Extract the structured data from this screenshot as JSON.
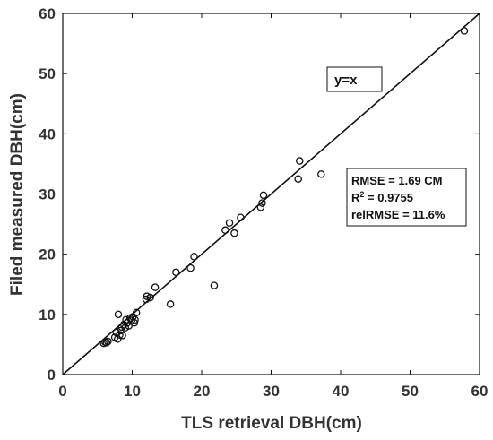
{
  "chart_data": {
    "type": "scatter",
    "xlabel": "TLS retrieval DBH(cm)",
    "ylabel": "Filed measured DBH(cm)",
    "xlim": [
      0,
      60
    ],
    "ylim": [
      0,
      60
    ],
    "xticks": [
      "0",
      "10",
      "20",
      "30",
      "40",
      "50",
      "60"
    ],
    "yticks": [
      "0",
      "10",
      "20",
      "30",
      "40",
      "50",
      "60"
    ],
    "grid": false,
    "reference_line": {
      "label": "y=x",
      "slope": 1,
      "intercept": 0
    },
    "stats": {
      "rmse": "RMSE = 1.69 CM",
      "r2_prefix": "R",
      "r2_sup": "2",
      "r2_value": " = 0.9755",
      "relrmse": "relRMSE = 11.6%"
    },
    "marker_color": "#111111",
    "points": [
      {
        "x": 5.9,
        "y": 5.2
      },
      {
        "x": 6.1,
        "y": 5.4
      },
      {
        "x": 6.3,
        "y": 5.3
      },
      {
        "x": 6.5,
        "y": 5.5
      },
      {
        "x": 7.5,
        "y": 6.2
      },
      {
        "x": 7.7,
        "y": 7.0
      },
      {
        "x": 7.9,
        "y": 5.9
      },
      {
        "x": 8.0,
        "y": 10.0
      },
      {
        "x": 8.2,
        "y": 6.6
      },
      {
        "x": 8.3,
        "y": 7.3
      },
      {
        "x": 8.5,
        "y": 7.9
      },
      {
        "x": 8.6,
        "y": 6.5
      },
      {
        "x": 8.8,
        "y": 8.3
      },
      {
        "x": 9.0,
        "y": 7.8
      },
      {
        "x": 9.1,
        "y": 9.1
      },
      {
        "x": 9.3,
        "y": 8.6
      },
      {
        "x": 9.5,
        "y": 8.1
      },
      {
        "x": 9.7,
        "y": 9.4
      },
      {
        "x": 9.9,
        "y": 9.0
      },
      {
        "x": 10.1,
        "y": 9.6
      },
      {
        "x": 10.3,
        "y": 8.6
      },
      {
        "x": 10.6,
        "y": 10.3
      },
      {
        "x": 10.4,
        "y": 9.1
      },
      {
        "x": 12.0,
        "y": 12.5
      },
      {
        "x": 12.1,
        "y": 13.0
      },
      {
        "x": 12.6,
        "y": 12.8
      },
      {
        "x": 13.3,
        "y": 14.5
      },
      {
        "x": 15.5,
        "y": 11.7
      },
      {
        "x": 16.3,
        "y": 17.0
      },
      {
        "x": 18.4,
        "y": 17.7
      },
      {
        "x": 18.9,
        "y": 19.6
      },
      {
        "x": 21.8,
        "y": 14.8
      },
      {
        "x": 23.4,
        "y": 24.0
      },
      {
        "x": 24.0,
        "y": 25.2
      },
      {
        "x": 24.7,
        "y": 23.5
      },
      {
        "x": 25.6,
        "y": 26.1
      },
      {
        "x": 28.5,
        "y": 27.8
      },
      {
        "x": 28.7,
        "y": 28.5
      },
      {
        "x": 28.9,
        "y": 29.8
      },
      {
        "x": 33.9,
        "y": 32.5
      },
      {
        "x": 34.1,
        "y": 35.5
      },
      {
        "x": 37.2,
        "y": 33.3
      },
      {
        "x": 57.8,
        "y": 57.1
      }
    ]
  }
}
